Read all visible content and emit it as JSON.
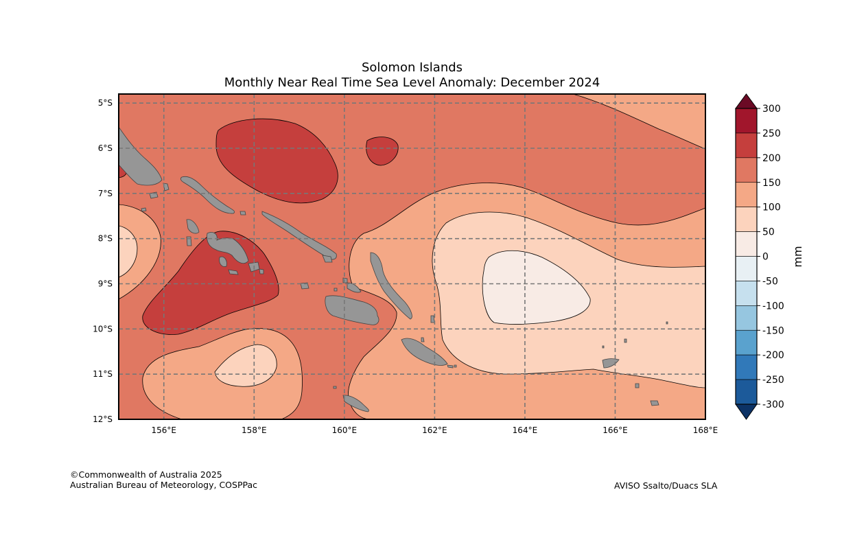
{
  "title": "Solomon Islands",
  "subtitle": "Monthly Near Real Time Sea Level Anomaly: December 2024",
  "map": {
    "projection": "PlateCarree",
    "extent": {
      "lon_min": 155,
      "lon_max": 168,
      "lat_min": -12,
      "lat_max": -4.8
    },
    "x_ticks": [
      "156°E",
      "158°E",
      "160°E",
      "162°E",
      "164°E",
      "166°E",
      "168°E"
    ],
    "y_ticks": [
      "5°S",
      "6°S",
      "7°S",
      "8°S",
      "9°S",
      "10°S",
      "11°S",
      "12°S"
    ],
    "gridlines": "dashed",
    "land_color": "#969696"
  },
  "colorbar": {
    "label": "mm",
    "ticks": [
      "300",
      "250",
      "200",
      "150",
      "100",
      "50",
      "0",
      "-50",
      "-100",
      "-150",
      "-200",
      "-250",
      "-300"
    ],
    "levels": [
      300,
      250,
      200,
      150,
      100,
      50,
      0,
      -50,
      -100,
      -150,
      -200,
      -250,
      -300
    ],
    "colors": [
      "#a1162c",
      "#c53f3d",
      "#e07862",
      "#f4a886",
      "#fcd3bd",
      "#f8ebe5",
      "#e8f0f4",
      "#c6e0ee",
      "#96c6e0",
      "#5aa2ce",
      "#3179b9",
      "#1c5a9a"
    ],
    "over_color": "#6b0a25",
    "under_color": "#0c3265",
    "extend": "both"
  },
  "footer": {
    "copyright": "©Commonwealth of Australia 2025",
    "agency": "Australian Bureau of Meteorology, COSPPac",
    "source": "AVISO Ssalto/Duacs SLA"
  }
}
